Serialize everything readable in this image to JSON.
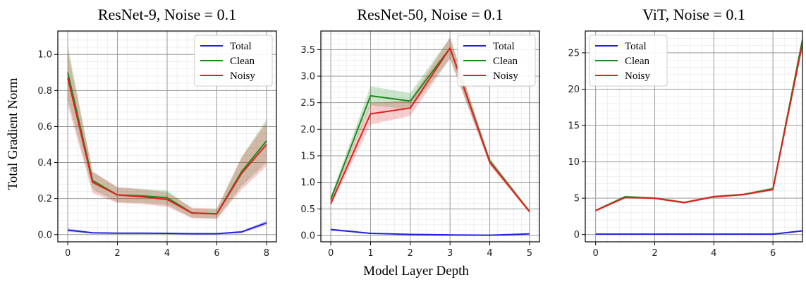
{
  "figure": {
    "ylabel": "Total Gradient Norm",
    "xlabel": "Model Layer Depth",
    "legend_location": "top-right",
    "colors": {
      "Total": "#1f1fe0",
      "Clean": "#1a8a1a",
      "Noisy": "#e02020"
    }
  },
  "chart_data": [
    {
      "type": "line",
      "title": "ResNet-9, Noise = 0.1",
      "x": [
        0,
        1,
        2,
        3,
        4,
        5,
        6,
        7,
        8
      ],
      "xlim": [
        -0.4,
        8.4
      ],
      "ylim": [
        -0.04,
        1.13
      ],
      "xticks": [
        0,
        2,
        4,
        6,
        8
      ],
      "yticks": [
        0.0,
        0.2,
        0.4,
        0.6,
        0.8,
        1.0
      ],
      "ytick_labels": [
        "0.0",
        "0.2",
        "0.4",
        "0.6",
        "0.8",
        "1.0"
      ],
      "grid": true,
      "series": [
        {
          "name": "Total",
          "values": [
            0.025,
            0.01,
            0.008,
            0.008,
            0.007,
            0.005,
            0.005,
            0.015,
            0.065
          ],
          "band": [
            0.01,
            0.003,
            0.003,
            0.003,
            0.003,
            0.002,
            0.002,
            0.006,
            0.012
          ]
        },
        {
          "name": "Clean",
          "values": [
            0.9,
            0.3,
            0.22,
            0.215,
            0.205,
            0.12,
            0.115,
            0.35,
            0.52
          ],
          "band": [
            0.15,
            0.05,
            0.04,
            0.04,
            0.04,
            0.025,
            0.025,
            0.08,
            0.12
          ]
        },
        {
          "name": "Noisy",
          "values": [
            0.87,
            0.29,
            0.22,
            0.21,
            0.195,
            0.12,
            0.115,
            0.34,
            0.5
          ],
          "band": [
            0.15,
            0.06,
            0.045,
            0.04,
            0.04,
            0.03,
            0.03,
            0.09,
            0.12
          ]
        }
      ]
    },
    {
      "type": "line",
      "title": "ResNet-50, Noise = 0.1",
      "x": [
        0,
        1,
        2,
        3,
        4,
        5
      ],
      "xlim": [
        -0.25,
        5.25
      ],
      "ylim": [
        -0.12,
        3.85
      ],
      "xticks": [
        0,
        1,
        2,
        3,
        4,
        5
      ],
      "yticks": [
        0.0,
        0.5,
        1.0,
        1.5,
        2.0,
        2.5,
        3.0,
        3.5
      ],
      "ytick_labels": [
        "0.0",
        "0.5",
        "1.0",
        "1.5",
        "2.0",
        "2.5",
        "3.0",
        "3.5"
      ],
      "grid": true,
      "series": [
        {
          "name": "Total",
          "values": [
            0.11,
            0.04,
            0.02,
            0.01,
            0.005,
            0.03
          ],
          "band": [
            0.02,
            0.01,
            0.005,
            0.004,
            0.004,
            0.008
          ]
        },
        {
          "name": "Clean",
          "values": [
            0.68,
            2.63,
            2.53,
            3.53,
            1.4,
            0.45
          ],
          "band": [
            0.06,
            0.18,
            0.15,
            0.2,
            0.06,
            0.03
          ]
        },
        {
          "name": "Noisy",
          "values": [
            0.6,
            2.29,
            2.4,
            3.53,
            1.38,
            0.45
          ],
          "band": [
            0.05,
            0.2,
            0.15,
            0.2,
            0.06,
            0.03
          ]
        }
      ]
    },
    {
      "type": "line",
      "title": "ViT, Noise = 0.1",
      "x": [
        0,
        1,
        2,
        3,
        4,
        5,
        6,
        7
      ],
      "xlim": [
        -0.35,
        7.0
      ],
      "ylim": [
        -1.0,
        28.0
      ],
      "xticks": [
        0,
        2,
        4,
        6
      ],
      "yticks": [
        0,
        5,
        10,
        15,
        20,
        25
      ],
      "ytick_labels": [
        "0",
        "5",
        "10",
        "15",
        "20",
        "25"
      ],
      "grid": true,
      "series": [
        {
          "name": "Total",
          "values": [
            0.05,
            0.05,
            0.05,
            0.05,
            0.05,
            0.05,
            0.05,
            0.5
          ],
          "band": [
            0.02,
            0.02,
            0.02,
            0.02,
            0.02,
            0.02,
            0.02,
            0.05
          ]
        },
        {
          "name": "Clean",
          "values": [
            3.3,
            5.2,
            5.0,
            4.4,
            5.2,
            5.5,
            6.3,
            26.8
          ],
          "band": [
            0.15,
            0.15,
            0.15,
            0.15,
            0.15,
            0.15,
            0.2,
            0.6
          ]
        },
        {
          "name": "Noisy",
          "values": [
            3.3,
            5.1,
            5.0,
            4.4,
            5.2,
            5.5,
            6.2,
            26.3
          ],
          "band": [
            0.15,
            0.15,
            0.15,
            0.15,
            0.15,
            0.15,
            0.2,
            0.6
          ]
        }
      ]
    }
  ]
}
